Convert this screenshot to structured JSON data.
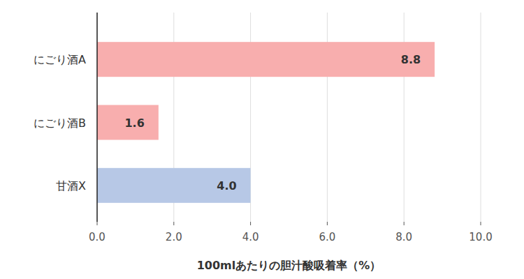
{
  "chart_data": {
    "type": "bar",
    "orientation": "horizontal",
    "categories": [
      "にごり酒A",
      "にごり酒B",
      "甘酒X"
    ],
    "values": [
      8.8,
      1.6,
      4.0
    ],
    "value_labels": [
      "8.8",
      "1.6",
      "4.0"
    ],
    "colors": [
      "#f8aeae",
      "#f8aeae",
      "#b7c8e6"
    ],
    "x_label": "100mlあたりの胆汁酸吸着率（%）",
    "xlim": [
      0,
      10
    ],
    "xticks": [
      {
        "value": 0,
        "label": "0.0"
      },
      {
        "value": 2,
        "label": "2.0"
      },
      {
        "value": 4,
        "label": "4.0"
      },
      {
        "value": 6,
        "label": "6.0"
      },
      {
        "value": 8,
        "label": "8.0"
      },
      {
        "value": 10,
        "label": "10.0"
      }
    ],
    "grid": true,
    "data_labels": true
  }
}
